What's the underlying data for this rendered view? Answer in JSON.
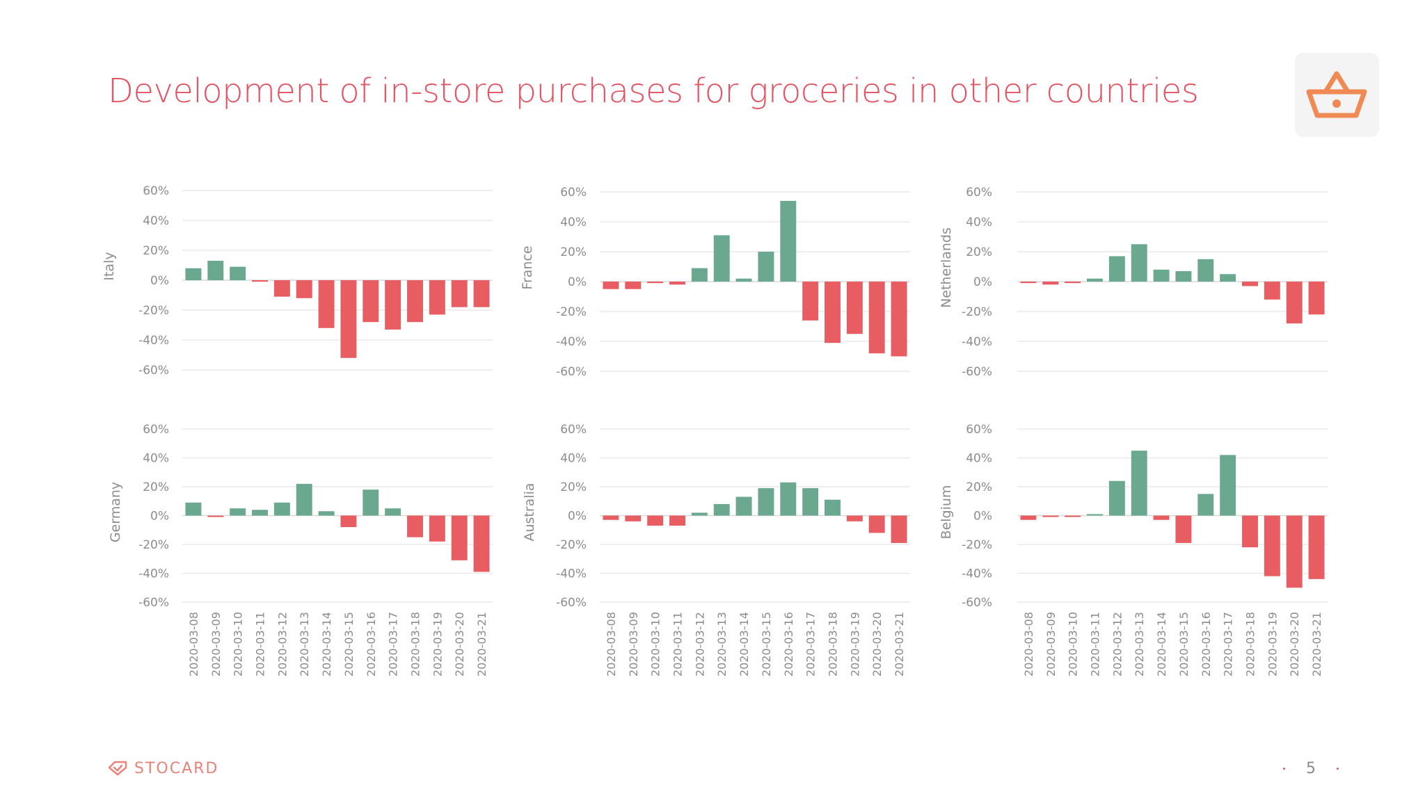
{
  "page": {
    "title": "Development of in-store purchases for groceries in other countries",
    "brand": "STOCARD",
    "page_number": "5",
    "icon": "shopping-basket-icon"
  },
  "colors": {
    "positive": "#6aa98f",
    "negative": "#e85d61",
    "title": "#e45361",
    "grid": "#e9e9e9",
    "tick_text": "#8c8c8c",
    "brand": "#e9837a",
    "icon": "#ef8a55"
  },
  "chart_data": [
    {
      "type": "bar",
      "country": "Italy",
      "ylabel": "Italy",
      "ylim": [
        -60,
        60
      ],
      "yticks": [
        60,
        40,
        20,
        0,
        -20,
        -40,
        -60
      ],
      "ytick_labels": [
        "60%",
        "40%",
        "20%",
        "0%",
        "-20%",
        "-40%",
        "-60%"
      ],
      "categories": [
        "2020-03-08",
        "2020-03-09",
        "2020-03-10",
        "2020-03-11",
        "2020-03-12",
        "2020-03-13",
        "2020-03-14",
        "2020-03-15",
        "2020-03-16",
        "2020-03-17",
        "2020-03-18",
        "2020-03-19",
        "2020-03-20",
        "2020-03-21"
      ],
      "values": [
        8,
        13,
        9,
        -1,
        -11,
        -12,
        -32,
        -52,
        -28,
        -33,
        -28,
        -23,
        -18,
        -18
      ],
      "show_xlabels": false
    },
    {
      "type": "bar",
      "country": "France",
      "ylabel": "France",
      "ylim": [
        -60,
        60
      ],
      "yticks": [
        60,
        40,
        20,
        0,
        -20,
        -40,
        -60
      ],
      "ytick_labels": [
        "60%",
        "40%",
        "20%",
        "0%",
        "-20%",
        "-40%",
        "-60%"
      ],
      "categories": [
        "2020-03-08",
        "2020-03-09",
        "2020-03-10",
        "2020-03-11",
        "2020-03-12",
        "2020-03-13",
        "2020-03-14",
        "2020-03-15",
        "2020-03-16",
        "2020-03-17",
        "2020-03-18",
        "2020-03-19",
        "2020-03-20",
        "2020-03-21"
      ],
      "values": [
        -5,
        -5,
        -1,
        -2,
        9,
        31,
        2,
        20,
        54,
        -26,
        -41,
        -35,
        -48,
        -50
      ],
      "show_xlabels": false
    },
    {
      "type": "bar",
      "country": "Netherlands",
      "ylabel": "Netherlands",
      "ylim": [
        -60,
        60
      ],
      "yticks": [
        60,
        40,
        20,
        0,
        -20,
        -40,
        -60
      ],
      "ytick_labels": [
        "60%",
        "40%",
        "20%",
        "0%",
        "-20%",
        "-40%",
        "-60%"
      ],
      "categories": [
        "2020-03-08",
        "2020-03-09",
        "2020-03-10",
        "2020-03-11",
        "2020-03-12",
        "2020-03-13",
        "2020-03-14",
        "2020-03-15",
        "2020-03-16",
        "2020-03-17",
        "2020-03-18",
        "2020-03-19",
        "2020-03-20",
        "2020-03-21"
      ],
      "values": [
        -1,
        -2,
        -1,
        2,
        17,
        25,
        8,
        7,
        15,
        5,
        -3,
        -12,
        -28,
        -22
      ],
      "show_xlabels": false
    },
    {
      "type": "bar",
      "country": "Germany",
      "ylabel": "Germany",
      "ylim": [
        -60,
        60
      ],
      "yticks": [
        60,
        40,
        20,
        0,
        -20,
        -40,
        -60
      ],
      "ytick_labels": [
        "60%",
        "40%",
        "20%",
        "0%",
        "-20%",
        "-40%",
        "-60%"
      ],
      "categories": [
        "2020-03-08",
        "2020-03-09",
        "2020-03-10",
        "2020-03-11",
        "2020-03-12",
        "2020-03-13",
        "2020-03-14",
        "2020-03-15",
        "2020-03-16",
        "2020-03-17",
        "2020-03-18",
        "2020-03-19",
        "2020-03-20",
        "2020-03-21"
      ],
      "values": [
        9,
        -1,
        5,
        4,
        9,
        22,
        3,
        -8,
        18,
        5,
        -15,
        -18,
        -31,
        -39
      ],
      "show_xlabels": true
    },
    {
      "type": "bar",
      "country": "Australia",
      "ylabel": "Australia",
      "ylim": [
        -60,
        60
      ],
      "yticks": [
        60,
        40,
        20,
        0,
        -20,
        -40,
        -60
      ],
      "ytick_labels": [
        "60%",
        "40%",
        "20%",
        "0%",
        "-20%",
        "-40%",
        "-60%"
      ],
      "categories": [
        "2020-03-08",
        "2020-03-09",
        "2020-03-10",
        "2020-03-11",
        "2020-03-12",
        "2020-03-13",
        "2020-03-14",
        "2020-03-15",
        "2020-03-16",
        "2020-03-17",
        "2020-03-18",
        "2020-03-19",
        "2020-03-20",
        "2020-03-21"
      ],
      "values": [
        -3,
        -4,
        -7,
        -7,
        2,
        8,
        13,
        19,
        23,
        19,
        11,
        -4,
        -12,
        -19
      ],
      "show_xlabels": true
    },
    {
      "type": "bar",
      "country": "Belgium",
      "ylabel": "Belgium",
      "ylim": [
        -60,
        60
      ],
      "yticks": [
        60,
        40,
        20,
        0,
        -20,
        -40,
        -60
      ],
      "ytick_labels": [
        "60%",
        "40%",
        "20%",
        "0%",
        "-20%",
        "-40%",
        "-60%"
      ],
      "categories": [
        "2020-03-08",
        "2020-03-09",
        "2020-03-10",
        "2020-03-11",
        "2020-03-12",
        "2020-03-13",
        "2020-03-14",
        "2020-03-15",
        "2020-03-16",
        "2020-03-17",
        "2020-03-18",
        "2020-03-19",
        "2020-03-20",
        "2020-03-21"
      ],
      "values": [
        -3,
        -1,
        -1,
        1,
        24,
        45,
        -3,
        -19,
        15,
        42,
        -22,
        -42,
        -50,
        -44
      ],
      "show_xlabels": true
    }
  ]
}
